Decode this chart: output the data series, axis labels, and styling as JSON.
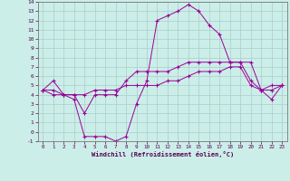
{
  "xlabel": "Windchill (Refroidissement éolien,°C)",
  "ylabel": "",
  "background_color": "#cceee8",
  "grid_color": "#aacccc",
  "line_color": "#990099",
  "xlim": [
    -0.5,
    23.5
  ],
  "ylim": [
    -1,
    14
  ],
  "xticks": [
    0,
    1,
    2,
    3,
    4,
    5,
    6,
    7,
    8,
    9,
    10,
    11,
    12,
    13,
    14,
    15,
    16,
    17,
    18,
    19,
    20,
    21,
    22,
    23
  ],
  "yticks": [
    -1,
    0,
    1,
    2,
    3,
    4,
    5,
    6,
    7,
    8,
    9,
    10,
    11,
    12,
    13,
    14
  ],
  "x": [
    0,
    1,
    2,
    3,
    4,
    5,
    6,
    7,
    8,
    9,
    10,
    11,
    12,
    13,
    14,
    15,
    16,
    17,
    18,
    19,
    20,
    21,
    22,
    23
  ],
  "line1": [
    4.5,
    5.5,
    4.0,
    4.0,
    2.0,
    4.0,
    4.0,
    4.0,
    5.5,
    6.5,
    6.5,
    6.5,
    6.5,
    7.0,
    7.5,
    7.5,
    7.5,
    7.5,
    7.5,
    7.5,
    5.5,
    4.5,
    4.5,
    5.0
  ],
  "line2": [
    4.5,
    4.5,
    4.0,
    4.0,
    4.0,
    4.5,
    4.5,
    4.5,
    5.0,
    5.0,
    5.0,
    5.0,
    5.5,
    5.5,
    6.0,
    6.5,
    6.5,
    6.5,
    7.0,
    7.0,
    5.0,
    4.5,
    5.0,
    5.0
  ],
  "line3": [
    4.5,
    4.0,
    4.0,
    3.5,
    -0.5,
    -0.5,
    -0.5,
    -1.0,
    -0.5,
    3.0,
    5.5,
    12.0,
    12.5,
    13.0,
    13.7,
    13.0,
    11.5,
    10.5,
    7.5,
    7.5,
    7.5,
    4.5,
    3.5,
    5.0
  ]
}
